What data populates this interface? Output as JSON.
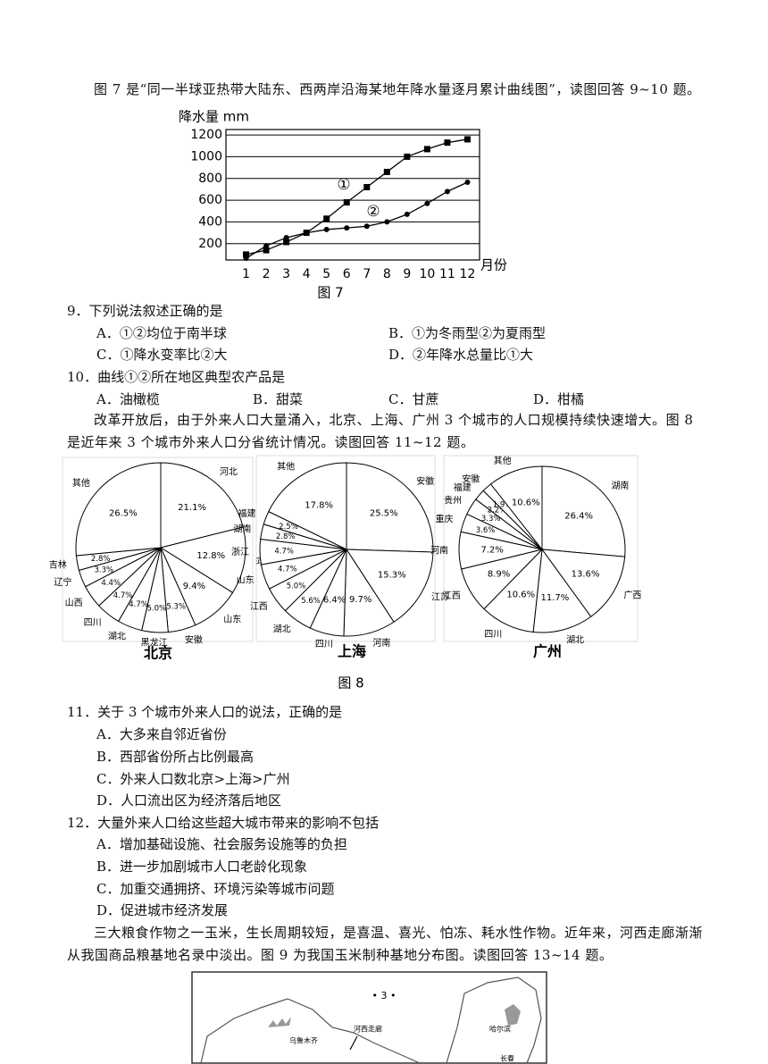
{
  "intro_7": "图 7 是“同一半球亚热带大陆东、西两岸沿海某地年降水量逐月累计曲线图”，读图回答 9~10 题。",
  "figure7": {
    "type": "line",
    "y_label": "降水量 mm",
    "x_label": "月份",
    "x": [
      1,
      2,
      3,
      4,
      5,
      6,
      7,
      8,
      9,
      10,
      11,
      12
    ],
    "xlim": [
      0,
      12.6
    ],
    "xticks": [
      1,
      2,
      3,
      4,
      5,
      6,
      7,
      8,
      9,
      10,
      11,
      12
    ],
    "ylim": [
      50,
      1250
    ],
    "yticks": [
      200,
      400,
      600,
      800,
      1000,
      1200
    ],
    "grid": true,
    "series": [
      {
        "name": "①",
        "color": "#000000",
        "marker": "square",
        "values": [
          100,
          140,
          215,
          300,
          430,
          580,
          720,
          860,
          1000,
          1070,
          1130,
          1160
        ]
      },
      {
        "name": "②",
        "color": "#000000",
        "marker": "circle",
        "values": [
          65,
          180,
          255,
          300,
          330,
          345,
          360,
          400,
          470,
          570,
          680,
          765
        ]
      }
    ],
    "caption": "图 7"
  },
  "questions": [
    {
      "stem": "9．下列说法叙述正确的是",
      "options": [
        "A．①②均位于南半球",
        "B．①为冬雨型②为夏雨型",
        "C．①降水变率比②大",
        "D．②年降水总量比①大"
      ]
    },
    {
      "stem": "10．曲线①②所在地区典型农产品是",
      "options": [
        "A．油橄榄",
        "B．甜菜",
        "C．甘蔗",
        "D．柑橘"
      ]
    },
    {
      "stem": "11．关于 3 个城市外来人口的说法，正确的是",
      "options": [
        "A．大多来自邻近省份",
        "B．西部省份所占比例最高",
        "C．外来人口数北京>上海>广州",
        "D．人口流出区为经济落后地区"
      ]
    },
    {
      "stem": "12．大量外来人口给这些超大城市带来的影响不包括",
      "options": [
        "A．增加基础设施、社会服务设施等的负担",
        "B．进一步加剧城市人口老龄化现象",
        "C．加重交通拥挤、环境污染等城市问题",
        "D．促进城市经济发展"
      ]
    }
  ],
  "intro_8": "改革开放后，由于外来人口大量涌入，北京、上海、广州 3 个城市的人口规模持续快速增大。图 8 是近年来 3 个城市外来人口分省统计情况。读图回答 11~12 题。",
  "figure8": {
    "charts": [
      {
        "type": "pie",
        "title": "北京",
        "color": "#ffffff",
        "categories": [
          "河北",
          "河南",
          "山东",
          "安徽",
          "黑龙江",
          "湖北",
          "四川",
          "山西",
          "辽宁",
          "吉林",
          "其他"
        ],
        "values": [
          21.1,
          12.8,
          9.4,
          5.3,
          5.0,
          4.7,
          4.7,
          4.4,
          3.3,
          2.8,
          26.5
        ],
        "value_labels": [
          "21.1%",
          "12.8%",
          "9.4%",
          "5.3%",
          "5.0%",
          "4.7%",
          "4.7%",
          "4.4%",
          "3.3%",
          "2.8%",
          "26.5%"
        ]
      },
      {
        "type": "pie",
        "title": "上海",
        "color": "#ffffff",
        "categories": [
          "安徽",
          "江苏",
          "河南",
          "四川",
          "湖北",
          "江西",
          "山东",
          "浙江",
          "湖南",
          "福建",
          "其他"
        ],
        "values": [
          25.5,
          15.3,
          9.7,
          6.4,
          5.6,
          5.0,
          4.7,
          4.7,
          2.8,
          2.5,
          17.8
        ],
        "value_labels": [
          "25.5%",
          "15.3%",
          "9.7%",
          "6.4%",
          "5.6%",
          "5.0%",
          "4.7%",
          "4.7%",
          "2.8%",
          "2.5%",
          "17.8%"
        ]
      },
      {
        "type": "pie",
        "title": "广州",
        "color": "#ffffff",
        "categories": [
          "湖南",
          "广西",
          "湖北",
          "四川",
          "江西",
          "河南",
          "重庆",
          "贵州",
          "福建",
          "安徽",
          "其他"
        ],
        "values": [
          26.4,
          13.6,
          11.7,
          10.6,
          8.9,
          7.2,
          3.6,
          3.3,
          2.2,
          1.9,
          10.6
        ],
        "value_labels": [
          "26.4%",
          "13.6%",
          "11.7%",
          "10.6%",
          "8.9%",
          "7.2%",
          "3.6%",
          "3.3%",
          "2.2%",
          "1.9%",
          "10.6%"
        ]
      }
    ],
    "caption": "图 8"
  },
  "intro_9": "三大粮食作物之一玉米，生长周期较短，是喜温、喜光、怕冻、耗水性作物。近年来，河西走廊渐渐从我国商品粮基地名录中淡出。图 9 为我国玉米制种基地分布图。读图回答 13~14 题。",
  "figure9": {
    "page_number": "• 3 •",
    "labels": [
      "乌鲁木齐",
      "河西走廊",
      "哈尔滨",
      "长春"
    ]
  }
}
